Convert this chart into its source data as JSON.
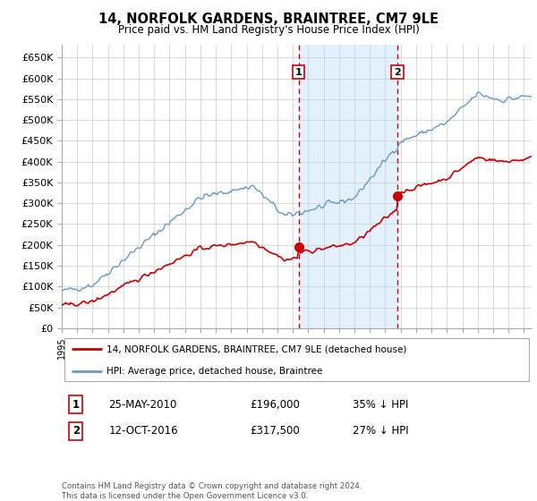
{
  "title": "14, NORFOLK GARDENS, BRAINTREE, CM7 9LE",
  "subtitle": "Price paid vs. HM Land Registry's House Price Index (HPI)",
  "ylim": [
    0,
    680000
  ],
  "yticks": [
    0,
    50000,
    100000,
    150000,
    200000,
    250000,
    300000,
    350000,
    400000,
    450000,
    500000,
    550000,
    600000,
    650000
  ],
  "sale1_date_num": 2010.38,
  "sale1_label": "1",
  "sale1_price": 196000,
  "sale2_date_num": 2016.78,
  "sale2_label": "2",
  "sale2_price": 317500,
  "legend_entry1": "14, NORFOLK GARDENS, BRAINTREE, CM7 9LE (detached house)",
  "legend_entry2": "HPI: Average price, detached house, Braintree",
  "table_row1_num": "1",
  "table_row1_date": "25-MAY-2010",
  "table_row1_price": "£196,000",
  "table_row1_hpi": "35% ↓ HPI",
  "table_row2_num": "2",
  "table_row2_date": "12-OCT-2016",
  "table_row2_price": "£317,500",
  "table_row2_hpi": "27% ↓ HPI",
  "footnote": "Contains HM Land Registry data © Crown copyright and database right 2024.\nThis data is licensed under the Open Government Licence v3.0.",
  "hpi_color": "#6699cc",
  "price_color": "#cc0000",
  "shade_color": "#ddeeff",
  "xstart": 1995.0,
  "xend": 2025.5
}
